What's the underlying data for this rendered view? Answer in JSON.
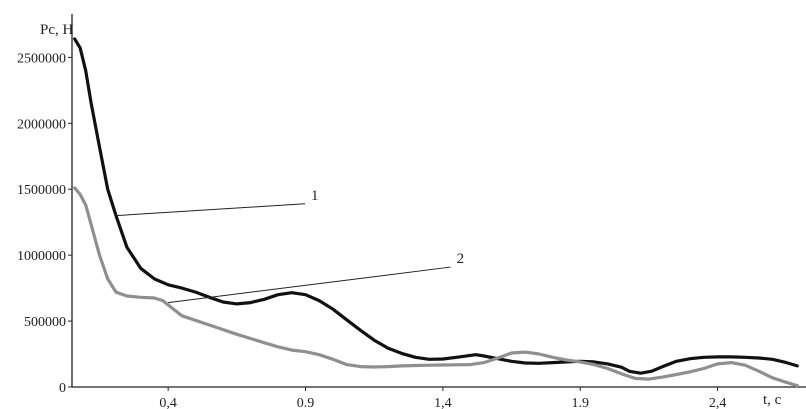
{
  "chart_data": {
    "type": "line",
    "ylabel": "Pc, H",
    "xlabel": "t, c",
    "xlim": [
      0.05,
      2.7
    ],
    "ylim": [
      0,
      2700000
    ],
    "x_ticks": [
      {
        "value": 0.4,
        "label": "0,4"
      },
      {
        "value": 0.9,
        "label": "0.9"
      },
      {
        "value": 1.4,
        "label": "1,4"
      },
      {
        "value": 1.9,
        "label": "1.9"
      },
      {
        "value": 2.4,
        "label": "2,4"
      }
    ],
    "y_ticks": [
      {
        "value": 0,
        "label": "0"
      },
      {
        "value": 500000,
        "label": "500000"
      },
      {
        "value": 1000000,
        "label": "1000000"
      },
      {
        "value": 1500000,
        "label": "1500000"
      },
      {
        "value": 2000000,
        "label": "2000000"
      },
      {
        "value": 2500000,
        "label": "2500000"
      }
    ],
    "grid": false,
    "series": [
      {
        "name": "1",
        "color": "#111111",
        "label_x": 0.92,
        "label_y": 1420000,
        "anchor_x": 0.21,
        "anchor_y": 1300000,
        "points": [
          [
            0.06,
            2640000
          ],
          [
            0.08,
            2570000
          ],
          [
            0.1,
            2400000
          ],
          [
            0.12,
            2150000
          ],
          [
            0.15,
            1820000
          ],
          [
            0.18,
            1500000
          ],
          [
            0.21,
            1300000
          ],
          [
            0.25,
            1060000
          ],
          [
            0.3,
            900000
          ],
          [
            0.35,
            820000
          ],
          [
            0.4,
            775000
          ],
          [
            0.45,
            750000
          ],
          [
            0.5,
            720000
          ],
          [
            0.55,
            680000
          ],
          [
            0.6,
            645000
          ],
          [
            0.65,
            630000
          ],
          [
            0.7,
            640000
          ],
          [
            0.75,
            665000
          ],
          [
            0.8,
            700000
          ],
          [
            0.85,
            715000
          ],
          [
            0.9,
            700000
          ],
          [
            0.95,
            655000
          ],
          [
            1.0,
            590000
          ],
          [
            1.05,
            510000
          ],
          [
            1.1,
            430000
          ],
          [
            1.15,
            355000
          ],
          [
            1.2,
            295000
          ],
          [
            1.25,
            255000
          ],
          [
            1.3,
            225000
          ],
          [
            1.35,
            210000
          ],
          [
            1.4,
            212000
          ],
          [
            1.45,
            225000
          ],
          [
            1.5,
            240000
          ],
          [
            1.52,
            245000
          ],
          [
            1.55,
            235000
          ],
          [
            1.6,
            215000
          ],
          [
            1.65,
            195000
          ],
          [
            1.7,
            182000
          ],
          [
            1.75,
            180000
          ],
          [
            1.8,
            185000
          ],
          [
            1.85,
            190000
          ],
          [
            1.9,
            195000
          ],
          [
            1.95,
            190000
          ],
          [
            2.0,
            175000
          ],
          [
            2.05,
            150000
          ],
          [
            2.08,
            118000
          ],
          [
            2.12,
            105000
          ],
          [
            2.16,
            120000
          ],
          [
            2.2,
            155000
          ],
          [
            2.25,
            195000
          ],
          [
            2.3,
            215000
          ],
          [
            2.35,
            225000
          ],
          [
            2.4,
            228000
          ],
          [
            2.45,
            228000
          ],
          [
            2.5,
            225000
          ],
          [
            2.55,
            220000
          ],
          [
            2.6,
            210000
          ],
          [
            2.65,
            185000
          ],
          [
            2.69,
            160000
          ]
        ]
      },
      {
        "name": "2",
        "color": "#8f8f8f",
        "label_x": 1.45,
        "label_y": 940000,
        "anchor_x": 0.4,
        "anchor_y": 640000,
        "points": [
          [
            0.06,
            1510000
          ],
          [
            0.08,
            1460000
          ],
          [
            0.1,
            1380000
          ],
          [
            0.12,
            1230000
          ],
          [
            0.15,
            1000000
          ],
          [
            0.18,
            820000
          ],
          [
            0.21,
            720000
          ],
          [
            0.25,
            690000
          ],
          [
            0.3,
            680000
          ],
          [
            0.35,
            675000
          ],
          [
            0.38,
            655000
          ],
          [
            0.42,
            590000
          ],
          [
            0.45,
            540000
          ],
          [
            0.5,
            505000
          ],
          [
            0.55,
            470000
          ],
          [
            0.6,
            435000
          ],
          [
            0.65,
            400000
          ],
          [
            0.7,
            368000
          ],
          [
            0.75,
            335000
          ],
          [
            0.8,
            305000
          ],
          [
            0.85,
            280000
          ],
          [
            0.9,
            268000
          ],
          [
            0.95,
            245000
          ],
          [
            1.0,
            210000
          ],
          [
            1.05,
            170000
          ],
          [
            1.1,
            155000
          ],
          [
            1.15,
            152000
          ],
          [
            1.2,
            155000
          ],
          [
            1.25,
            160000
          ],
          [
            1.3,
            163000
          ],
          [
            1.35,
            165000
          ],
          [
            1.4,
            167000
          ],
          [
            1.45,
            168000
          ],
          [
            1.5,
            170000
          ],
          [
            1.55,
            185000
          ],
          [
            1.6,
            220000
          ],
          [
            1.65,
            258000
          ],
          [
            1.7,
            265000
          ],
          [
            1.75,
            250000
          ],
          [
            1.8,
            225000
          ],
          [
            1.85,
            205000
          ],
          [
            1.9,
            190000
          ],
          [
            1.95,
            170000
          ],
          [
            2.0,
            140000
          ],
          [
            2.05,
            100000
          ],
          [
            2.1,
            65000
          ],
          [
            2.15,
            60000
          ],
          [
            2.2,
            75000
          ],
          [
            2.25,
            95000
          ],
          [
            2.3,
            115000
          ],
          [
            2.35,
            140000
          ],
          [
            2.4,
            175000
          ],
          [
            2.45,
            185000
          ],
          [
            2.5,
            165000
          ],
          [
            2.55,
            120000
          ],
          [
            2.6,
            70000
          ],
          [
            2.65,
            35000
          ],
          [
            2.69,
            10000
          ]
        ]
      }
    ]
  }
}
